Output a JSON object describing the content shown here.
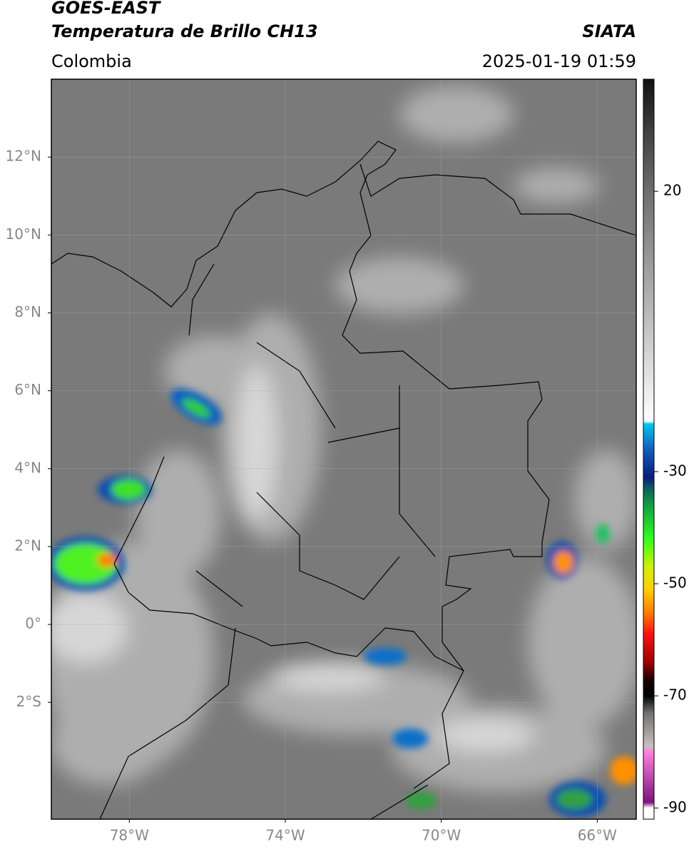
{
  "header": {
    "title": "GOES-EAST",
    "subtitle": "Temperatura de Brillo CH13",
    "region": "Colombia",
    "source": "SIATA",
    "datetime": "2025-01-19 01:59"
  },
  "map": {
    "xlim": [
      -80,
      -65
    ],
    "ylim": [
      -5,
      14
    ],
    "xticks": [
      {
        "value": -78,
        "label": "78°W"
      },
      {
        "value": -74,
        "label": "74°W"
      },
      {
        "value": -70,
        "label": "70°W"
      },
      {
        "value": -66,
        "label": "66°W"
      }
    ],
    "yticks": [
      {
        "value": 12,
        "label": "12°N"
      },
      {
        "value": 10,
        "label": "10°N"
      },
      {
        "value": 8,
        "label": "8°N"
      },
      {
        "value": 6,
        "label": "6°N"
      },
      {
        "value": 4,
        "label": "4°N"
      },
      {
        "value": 2,
        "label": "2°N"
      },
      {
        "value": 0,
        "label": "0°"
      },
      {
        "value": -2,
        "label": "2°S"
      }
    ],
    "grid": true
  },
  "colorbar": {
    "lim": [
      -92,
      40
    ],
    "ticks": [
      20,
      -30,
      -50,
      -70,
      -90
    ],
    "stops": [
      {
        "value": 40,
        "color": "#111111"
      },
      {
        "value": 30,
        "color": "#444444"
      },
      {
        "value": 20,
        "color": "#6e6e6e"
      },
      {
        "value": 0,
        "color": "#b4b4b4"
      },
      {
        "value": -21,
        "color": "#ffffff"
      },
      {
        "value": -21.5,
        "color": "#00c8f0"
      },
      {
        "value": -26,
        "color": "#1060c0"
      },
      {
        "value": -31,
        "color": "#0a1a80"
      },
      {
        "value": -33,
        "color": "#0a6060"
      },
      {
        "value": -36,
        "color": "#10a040"
      },
      {
        "value": -42,
        "color": "#30ff20"
      },
      {
        "value": -47,
        "color": "#d0f000"
      },
      {
        "value": -51,
        "color": "#ffd000"
      },
      {
        "value": -55,
        "color": "#ff8000"
      },
      {
        "value": -59,
        "color": "#ff1010"
      },
      {
        "value": -64,
        "color": "#a00000"
      },
      {
        "value": -67,
        "color": "#200000"
      },
      {
        "value": -70,
        "color": "#000000"
      },
      {
        "value": -73,
        "color": "#707070"
      },
      {
        "value": -79,
        "color": "#c8c0c0"
      },
      {
        "value": -80,
        "color": "#ff80e0"
      },
      {
        "value": -89,
        "color": "#801080"
      },
      {
        "value": -90,
        "color": "#ffffff"
      }
    ]
  }
}
